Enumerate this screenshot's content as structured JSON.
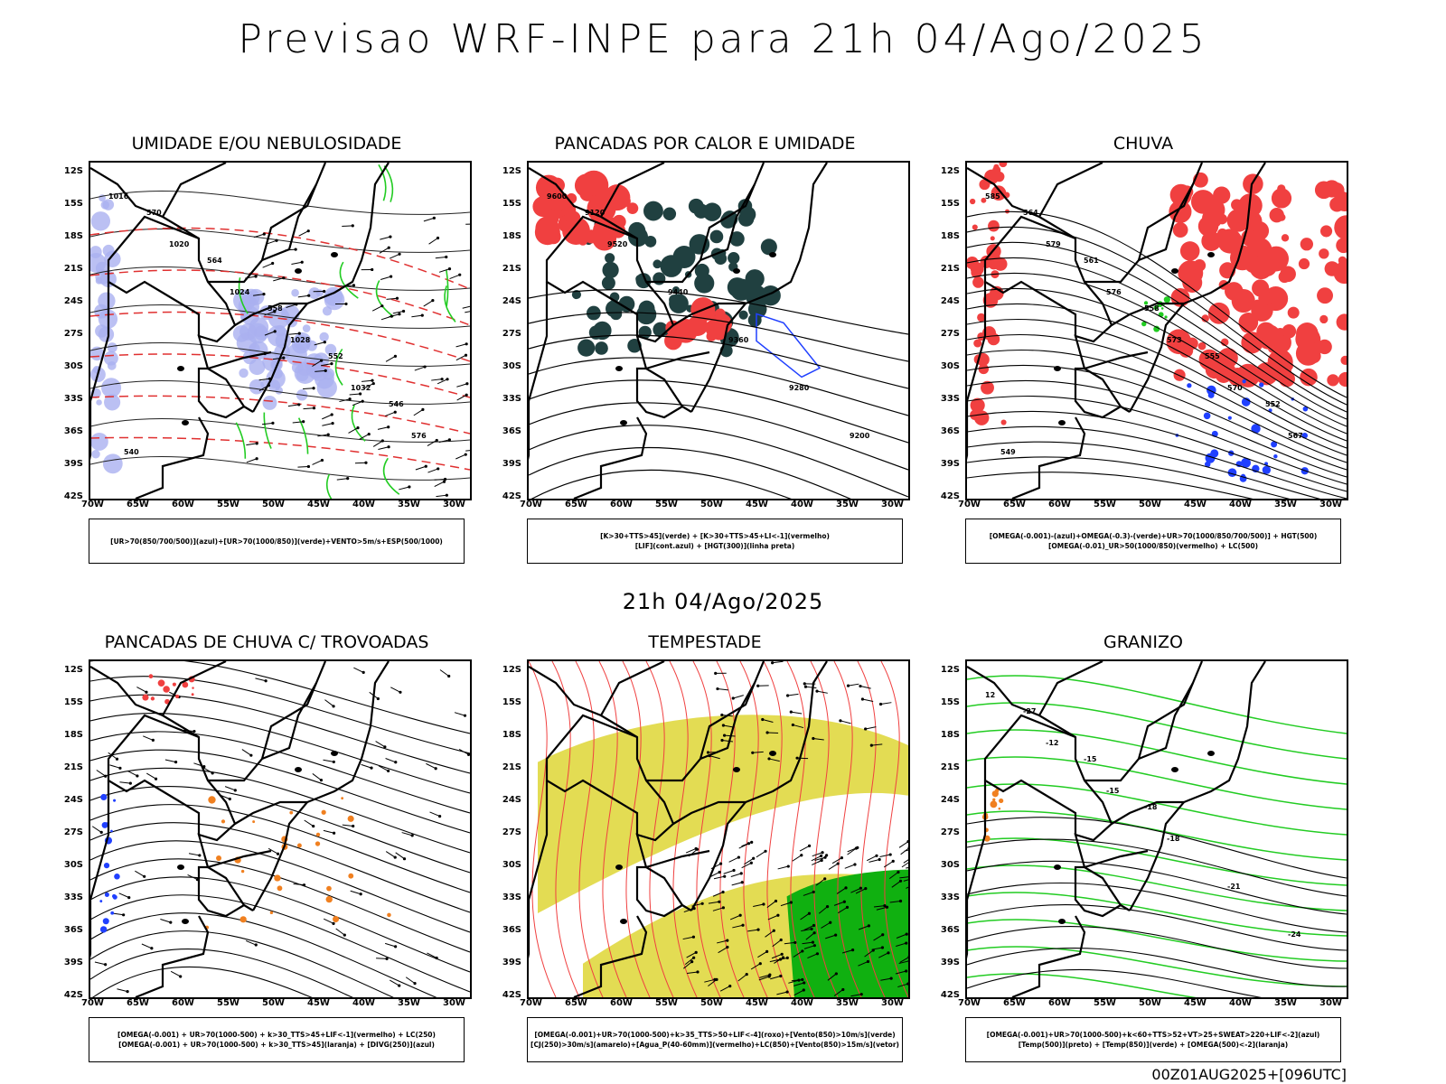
{
  "title": "Previsao WRF-INPE  para 21h 04/Ago/2025",
  "mid_date": "21h 04/Ago/2025",
  "footer": "00Z01AUG2025+[096UTC]",
  "lat_ticks": [
    "12S",
    "15S",
    "18S",
    "21S",
    "24S",
    "27S",
    "30S",
    "33S",
    "36S",
    "39S",
    "42S"
  ],
  "lon_ticks": [
    "70W",
    "65W",
    "60W",
    "55W",
    "50W",
    "45W",
    "40W",
    "35W",
    "30W"
  ],
  "colors": {
    "humidity_blue": "#aab0f0",
    "humidity_green": "#22cc22",
    "instability_red": "#f04040",
    "rain_blue": "#2040ff",
    "storm_yellow": "#e0d840",
    "storm_green": "#10b010",
    "dark_teal": "#204040",
    "orange": "#f08020"
  },
  "panels": [
    {
      "title": "UMIDADE E/OU NEBULOSIDADE",
      "legend": [
        "[UR>70(850/700/500)](azul)+[UR>70(1000/850)](verde)+VENTO>5m/s+ESP(500/1000)"
      ],
      "contour_labels": [
        "1016",
        "1020",
        "1024",
        "1028",
        "1032",
        "576",
        "570",
        "564",
        "558",
        "552",
        "546",
        "540"
      ]
    },
    {
      "title": "PANCADAS POR CALOR E UMIDADE",
      "legend": [
        "[K>30+TTS>45](verde) + [K>30+TTS>45+LI<-1](vermelho)",
        "[LIF](cont.azul) + [HGT(300)](linha preta)"
      ],
      "contour_labels": [
        "9600",
        "9520",
        "9440",
        "9360",
        "9280",
        "9200",
        "9120"
      ]
    },
    {
      "title": "CHUVA",
      "legend": [
        "[OMEGA(-0.001)-(azul)+OMEGA(-0.3)-(verde)+UR>70(1000/850/700/500)] + HGT(500)",
        "[OMEGA(-0.01)_UR>50(1000/850)(vermelho) + LC(500)"
      ],
      "contour_labels": [
        "585",
        "579",
        "576",
        "573",
        "570",
        "567",
        "564",
        "561",
        "558",
        "555",
        "552",
        "549"
      ]
    },
    {
      "title": "PANCADAS DE CHUVA C/ TROVOADAS",
      "legend": [
        "[OMEGA(-0.001) + UR>70(1000-500) + k>30_TTS>45+LIF<-1](vermelho) + LC(250)",
        "[OMEGA(-0.001) + UR>70(1000-500) + k>30_TTS>45](laranja) + [DIVG(250)](azul)"
      ],
      "contour_labels": []
    },
    {
      "title": "TEMPESTADE",
      "legend": [
        "[OMEGA(-0.001)+UR>70(1000-500)+k>35_TTS>50+LIF<-4](roxo)+[Vento(850)>10m/s](verde)",
        "[CJ(250)>30m/s](amarelo)+[Agua_P(40-60mm)](vermelho)+LC(850)+[Vento(850)>15m/s](vetor)"
      ],
      "contour_labels": []
    },
    {
      "title": "GRANIZO",
      "legend": [
        "[OMEGA(-0.001)+UR>70(1000-500)+k<60+TTS>52+VT>25+SWEAT>220+LIF<-2](azul)",
        "[Temp(500)](preto) + [Temp(850)](verde) + [OMEGA(500)<-2](laranja)"
      ],
      "contour_labels": [
        "12",
        "-12",
        "-15",
        "-18",
        "-21",
        "-24",
        "-27",
        "-15",
        "-18"
      ]
    }
  ]
}
